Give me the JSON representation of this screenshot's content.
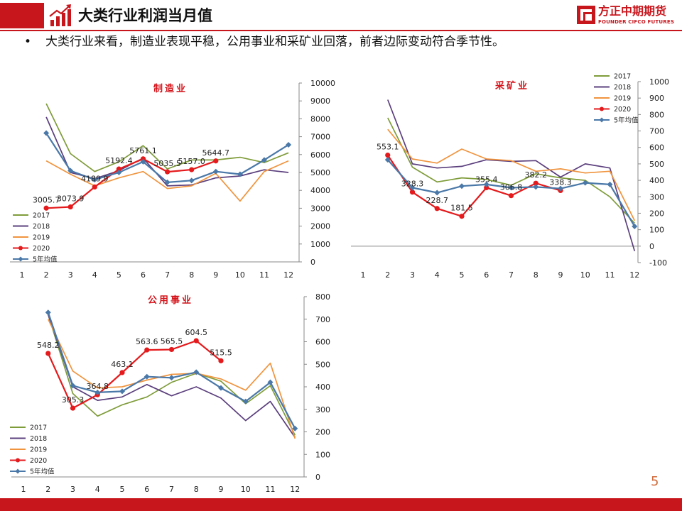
{
  "header": {
    "title": "大类行业利润当月值",
    "bullet": "大类行业来看，制造业表现平稳，公用事业和采矿业回落，前者边际变动符合季节性。",
    "bullet_symbol": "•",
    "page_number": "5"
  },
  "logo": {
    "cn": "方正中期期货",
    "en": "FOUNDER CIFCO FUTURES",
    "color": "#c8161d"
  },
  "colors": {
    "brand_red": "#c8161d",
    "s2017": "#7f9c3a",
    "s2018": "#5b3f7d",
    "s2019": "#f0943e",
    "s2020": "#e41a1c",
    "savg": "#4a78a8"
  },
  "chart_data": [
    {
      "type": "line",
      "title": "制造业",
      "categories": [
        "1",
        "2",
        "3",
        "4",
        "5",
        "6",
        "7",
        "8",
        "9",
        "10",
        "11",
        "12"
      ],
      "ylim": [
        0,
        10000
      ],
      "yticks": [
        "0",
        "1000",
        "2000",
        "3000",
        "4000",
        "5000",
        "6000",
        "7000",
        "8000",
        "9000",
        "10000"
      ],
      "legend_position": "bottom-left",
      "series": [
        {
          "name": "2017",
          "values": [
            null,
            8850,
            6050,
            5050,
            5600,
            6500,
            5200,
            5700,
            5700,
            5850,
            5550,
            6100
          ]
        },
        {
          "name": "2018",
          "values": [
            null,
            8100,
            5000,
            4650,
            5100,
            5800,
            4250,
            4300,
            4700,
            4800,
            5150,
            5000
          ]
        },
        {
          "name": "2019",
          "values": [
            null,
            5650,
            4900,
            4250,
            4700,
            5050,
            4100,
            4250,
            4950,
            3400,
            5050,
            5650
          ]
        },
        {
          "name": "2020",
          "values": [
            null,
            3005.7,
            3073.9,
            4189.9,
            5192.4,
            5761.1,
            5035.5,
            5157.0,
            5644.7,
            null,
            null,
            null
          ]
        },
        {
          "name": "5年均值",
          "values": [
            null,
            7200,
            5100,
            4600,
            5000,
            5600,
            4450,
            4550,
            5050,
            4900,
            5700,
            6550
          ]
        }
      ],
      "data_labels": [
        {
          "series": "2020",
          "category": "2",
          "label": "3005.7"
        },
        {
          "series": "2020",
          "category": "3",
          "label": "3073.9"
        },
        {
          "series": "2020",
          "category": "4",
          "label": "4189.9"
        },
        {
          "series": "2020",
          "category": "5",
          "label": "5192.4"
        },
        {
          "series": "2020",
          "category": "6",
          "label": "5761.1"
        },
        {
          "series": "2020",
          "category": "7",
          "label": "5035.5"
        },
        {
          "series": "2020",
          "category": "8",
          "label": "5157.0"
        },
        {
          "series": "2020",
          "category": "9",
          "label": "5644.7"
        }
      ]
    },
    {
      "type": "line",
      "title": "采矿业",
      "categories": [
        "1",
        "2",
        "3",
        "4",
        "5",
        "6",
        "7",
        "8",
        "9",
        "10",
        "11",
        "12"
      ],
      "ylim": [
        -100,
        1000
      ],
      "yticks": [
        "-100",
        "0",
        "100",
        "200",
        "300",
        "400",
        "500",
        "600",
        "700",
        "800",
        "900",
        "1000"
      ],
      "legend_position": "top-right",
      "series": [
        {
          "name": "2017",
          "values": [
            null,
            780,
            480,
            390,
            415,
            405,
            370,
            440,
            415,
            400,
            300,
            140
          ]
        },
        {
          "name": "2018",
          "values": [
            null,
            890,
            500,
            475,
            485,
            525,
            515,
            520,
            420,
            500,
            475,
            -30
          ]
        },
        {
          "name": "2019",
          "values": [
            null,
            710,
            530,
            505,
            590,
            530,
            520,
            455,
            470,
            445,
            455,
            155
          ]
        },
        {
          "name": "2020",
          "values": [
            null,
            553.1,
            328.3,
            228.7,
            181.5,
            355.4,
            306.8,
            382.2,
            338.3,
            null,
            null,
            null
          ]
        },
        {
          "name": "5年均值",
          "values": [
            null,
            525,
            355,
            325,
            365,
            375,
            355,
            360,
            350,
            385,
            375,
            120
          ]
        }
      ],
      "data_labels": [
        {
          "series": "2020",
          "category": "2",
          "label": "553.1"
        },
        {
          "series": "2020",
          "category": "3",
          "label": "328.3"
        },
        {
          "series": "2020",
          "category": "4",
          "label": "228.7"
        },
        {
          "series": "2020",
          "category": "5",
          "label": "181.5"
        },
        {
          "series": "2020",
          "category": "6",
          "label": "355.4"
        },
        {
          "series": "2020",
          "category": "7",
          "label": "306.8"
        },
        {
          "series": "2020",
          "category": "8",
          "label": "382.2"
        },
        {
          "series": "2020",
          "category": "9",
          "label": "338.3"
        }
      ]
    },
    {
      "type": "line",
      "title": "公用事业",
      "categories": [
        "1",
        "2",
        "3",
        "4",
        "5",
        "6",
        "7",
        "8",
        "9",
        "10",
        "11",
        "12"
      ],
      "ylim": [
        0,
        800
      ],
      "yticks": [
        "0",
        "100",
        "200",
        "300",
        "400",
        "500",
        "600",
        "700",
        "800"
      ],
      "legend_position": "bottom-left",
      "series": [
        {
          "name": "2017",
          "values": [
            null,
            720,
            370,
            270,
            320,
            355,
            420,
            460,
            425,
            325,
            405,
            185
          ]
        },
        {
          "name": "2018",
          "values": [
            null,
            720,
            400,
            340,
            355,
            410,
            360,
            400,
            350,
            250,
            335,
            175
          ]
        },
        {
          "name": "2019",
          "values": [
            null,
            700,
            470,
            395,
            400,
            430,
            455,
            460,
            435,
            385,
            505,
            170
          ]
        },
        {
          "name": "2020",
          "values": [
            null,
            548.2,
            305.3,
            364.8,
            463.1,
            563.6,
            565.5,
            604.5,
            515.5,
            null,
            null,
            null
          ]
        },
        {
          "name": "5年均值",
          "values": [
            null,
            730,
            405,
            375,
            380,
            445,
            440,
            465,
            395,
            335,
            420,
            215
          ]
        }
      ],
      "data_labels": [
        {
          "series": "2020",
          "category": "2",
          "label": "548.2"
        },
        {
          "series": "2020",
          "category": "3",
          "label": "305.3"
        },
        {
          "series": "2020",
          "category": "4",
          "label": "364.8"
        },
        {
          "series": "2020",
          "category": "5",
          "label": "463.1"
        },
        {
          "series": "2020",
          "category": "6",
          "label": "563.6"
        },
        {
          "series": "2020",
          "category": "7",
          "label": "565.5"
        },
        {
          "series": "2020",
          "category": "8",
          "label": "604.5"
        },
        {
          "series": "2020",
          "category": "9",
          "label": "515.5"
        }
      ]
    }
  ]
}
